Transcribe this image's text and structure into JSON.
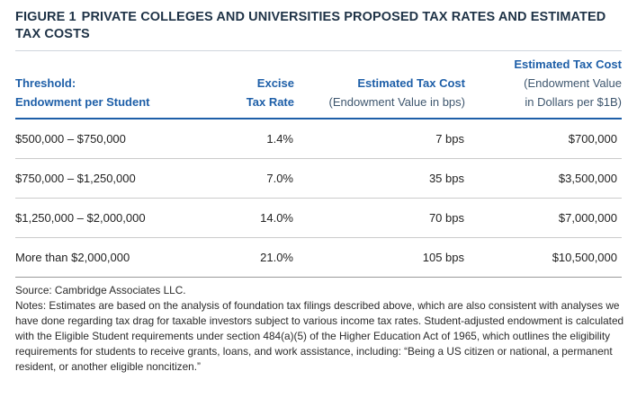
{
  "figure": {
    "label": "Figure 1",
    "title": "Private Colleges and Universities Proposed Tax Rates and Estimated Tax Costs"
  },
  "table": {
    "headers": {
      "threshold": {
        "line1": "Threshold:",
        "line2": "Endowment per Student"
      },
      "rate": {
        "line1": "Excise",
        "line2": "Tax Rate"
      },
      "bps": {
        "title": "Estimated Tax Cost",
        "sub": "(Endowment Value in bps)"
      },
      "dollars": {
        "title": "Estimated Tax Cost",
        "sub1": "(Endowment Value",
        "sub2": "in Dollars per $1B)"
      }
    },
    "rows": [
      {
        "threshold": "$500,000 – $750,000",
        "rate": "1.4%",
        "bps": "7 bps",
        "dollars": "$700,000"
      },
      {
        "threshold": "$750,000 – $1,250,000",
        "rate": "7.0%",
        "bps": "35 bps",
        "dollars": "$3,500,000"
      },
      {
        "threshold": "$1,250,000 – $2,000,000",
        "rate": "14.0%",
        "bps": "70 bps",
        "dollars": "$7,000,000"
      },
      {
        "threshold": "More than $2,000,000",
        "rate": "21.0%",
        "bps": "105 bps",
        "dollars": "$10,500,000"
      }
    ]
  },
  "footer": {
    "source": "Source: Cambridge Associates LLC.",
    "notes": "Notes: Estimates are based on the analysis of foundation tax filings described above, which are also consistent with analyses we have done regarding tax drag for taxable investors subject to various income tax rates. Student-adjusted endowment is calculated with the Eligible Student requirements under section 484(a)(5) of the Higher Education Act of 1965, which outlines the eligibility requirements for students to receive grants, loans, and work assistance, including: “Being a US citizen or national, a permanent resident, or another eligible noncitizen.”"
  },
  "colors": {
    "title": "#1f3347",
    "header_accent": "#1e5fa8",
    "header_sub": "#3e566e",
    "row_rule": "#cbcbcb"
  }
}
